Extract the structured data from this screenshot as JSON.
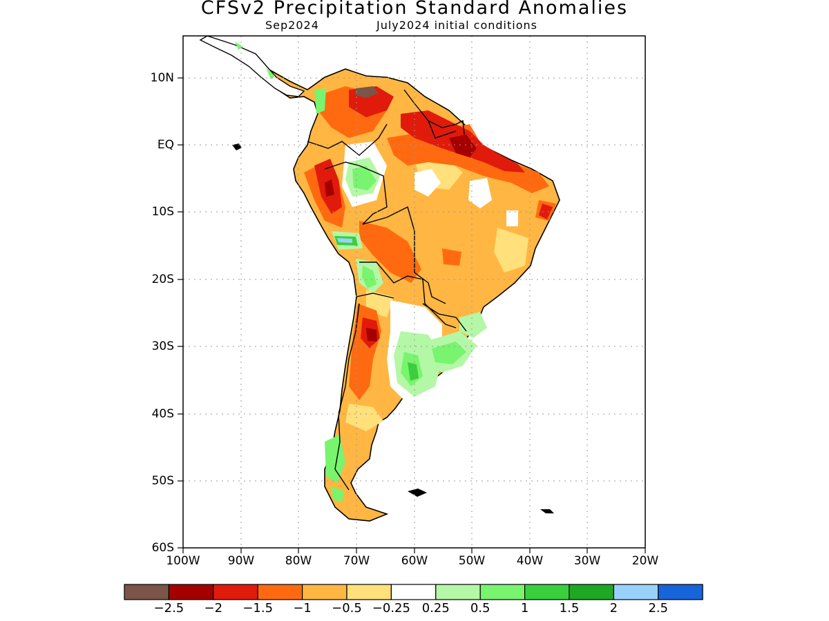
{
  "title": "CFSv2 Precipitation Standard Anomalies",
  "subtitle_target": "Sep2024",
  "subtitle_init": "July2024 initial conditions",
  "map": {
    "region": "South America",
    "lat_labels": [
      "10N",
      "EQ",
      "10S",
      "20S",
      "30S",
      "40S",
      "50S",
      "60S"
    ],
    "lon_labels": [
      "100W",
      "90W",
      "80W",
      "70W",
      "60W",
      "50W",
      "40W",
      "30W",
      "20W"
    ],
    "lat_range": [
      -60,
      16
    ],
    "lon_range": [
      -100,
      -20
    ]
  },
  "colorbar": {
    "colors": [
      "#7a5548",
      "#a50000",
      "#e01b0b",
      "#ff6a10",
      "#ffb642",
      "#ffe07a",
      "#ffffff",
      "#b4f7a6",
      "#78f46e",
      "#3acf3c",
      "#1ea824",
      "#98d2fa",
      "#1864d9"
    ],
    "labels": [
      "−2.5",
      "−2",
      "−1.5",
      "−1",
      "−0.5",
      "−0.25",
      "0.25",
      "0.5",
      "1",
      "1.5",
      "2",
      "2.5"
    ]
  }
}
